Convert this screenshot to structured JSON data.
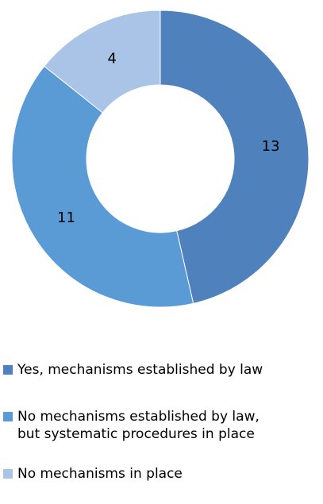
{
  "chart_data": {
    "type": "pie",
    "subtype": "donut",
    "title": "",
    "categories": [
      "Yes, mechanisms established by law",
      "No mechanisms established by law,\nbut systematic procedures in place",
      "No mechanisms in place"
    ],
    "values": [
      13,
      11,
      4
    ],
    "data_labels": [
      "13",
      "11",
      "4"
    ],
    "colors": [
      "#4f81bd",
      "#5b9bd5",
      "#a9c4e6"
    ],
    "legend_position": "bottom"
  }
}
